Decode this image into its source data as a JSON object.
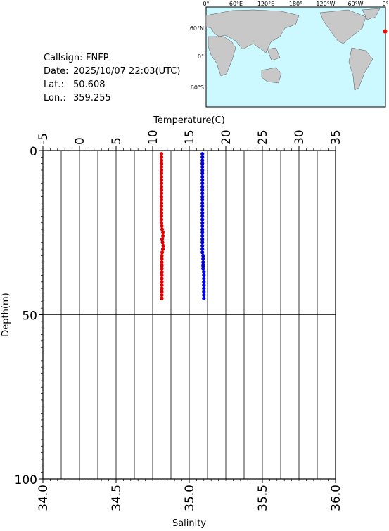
{
  "info": [
    {
      "label": "Callsign:",
      "value": "FNFP"
    },
    {
      "label": "Date:",
      "value": "2025/10/07 22:03(UTC)"
    },
    {
      "label": "Lat.:",
      "value": 50.608
    },
    {
      "label": "Lon.:",
      "value": 359.255
    }
  ],
  "map": {
    "lon_labels": [
      "0°",
      "60°E",
      "120°E",
      "180°",
      "120°W",
      "60°W",
      "0°"
    ],
    "lat_labels": [
      "60°N",
      "0°",
      "60°S"
    ],
    "marker_color": "#ff0000"
  },
  "chart_data": {
    "type": "profile",
    "ylabel": "Depth(m)",
    "ylim": [
      0,
      100
    ],
    "yticks": [
      0,
      50,
      100
    ],
    "y_minor_step": 2,
    "y_inverted": true,
    "top_axis": {
      "label": "Temperature(C)",
      "lim": [
        -5,
        35
      ],
      "ticks": [
        -5,
        0,
        5,
        10,
        15,
        20,
        25,
        30,
        35
      ],
      "minor_step": 1,
      "grid_step": 2.5
    },
    "bottom_axis": {
      "label": "Salinity",
      "lim": [
        34,
        36
      ],
      "ticks": [
        {
          "value": 34,
          "label": "34.0"
        },
        34.5,
        {
          "value": 35,
          "label": "35.0"
        },
        35.5,
        {
          "value": 36,
          "label": "36.0"
        }
      ],
      "minor_step": 0.05
    },
    "depth": [
      1,
      2,
      3,
      4,
      5,
      6,
      7,
      8,
      9,
      10,
      11,
      12,
      13,
      14,
      15,
      16,
      17,
      18,
      19,
      20,
      21,
      22,
      23,
      24,
      25,
      26,
      27,
      28,
      29,
      30,
      31,
      32,
      33,
      34,
      35,
      36,
      37,
      38,
      39,
      40,
      41,
      42,
      43,
      44,
      45
    ],
    "series": [
      {
        "axis": "top",
        "color": "#e00000",
        "values": [
          11.2,
          11.2,
          11.2,
          11.2,
          11.2,
          11.2,
          11.2,
          11.2,
          11.2,
          11.2,
          11.2,
          11.2,
          11.2,
          11.2,
          11.2,
          11.2,
          11.2,
          11.2,
          11.2,
          11.2,
          11.2,
          11.2,
          11.25,
          11.3,
          11.4,
          11.4,
          11.3,
          11.35,
          11.45,
          11.4,
          11.3,
          11.25,
          11.25,
          11.25,
          11.25,
          11.25,
          11.25,
          11.25,
          11.25,
          11.25,
          11.25,
          11.25,
          11.25,
          11.25,
          11.25
        ]
      },
      {
        "axis": "bottom",
        "color": "#0000dd",
        "values": [
          35.09,
          35.09,
          35.09,
          35.09,
          35.09,
          35.09,
          35.09,
          35.09,
          35.09,
          35.09,
          35.09,
          35.09,
          35.09,
          35.09,
          35.09,
          35.09,
          35.09,
          35.09,
          35.09,
          35.09,
          35.09,
          35.09,
          35.09,
          35.09,
          35.09,
          35.09,
          35.09,
          35.09,
          35.09,
          35.09,
          35.09,
          35.095,
          35.095,
          35.095,
          35.095,
          35.095,
          35.1,
          35.1,
          35.1,
          35.1,
          35.1,
          35.1,
          35.1,
          35.1,
          35.1
        ]
      }
    ]
  }
}
